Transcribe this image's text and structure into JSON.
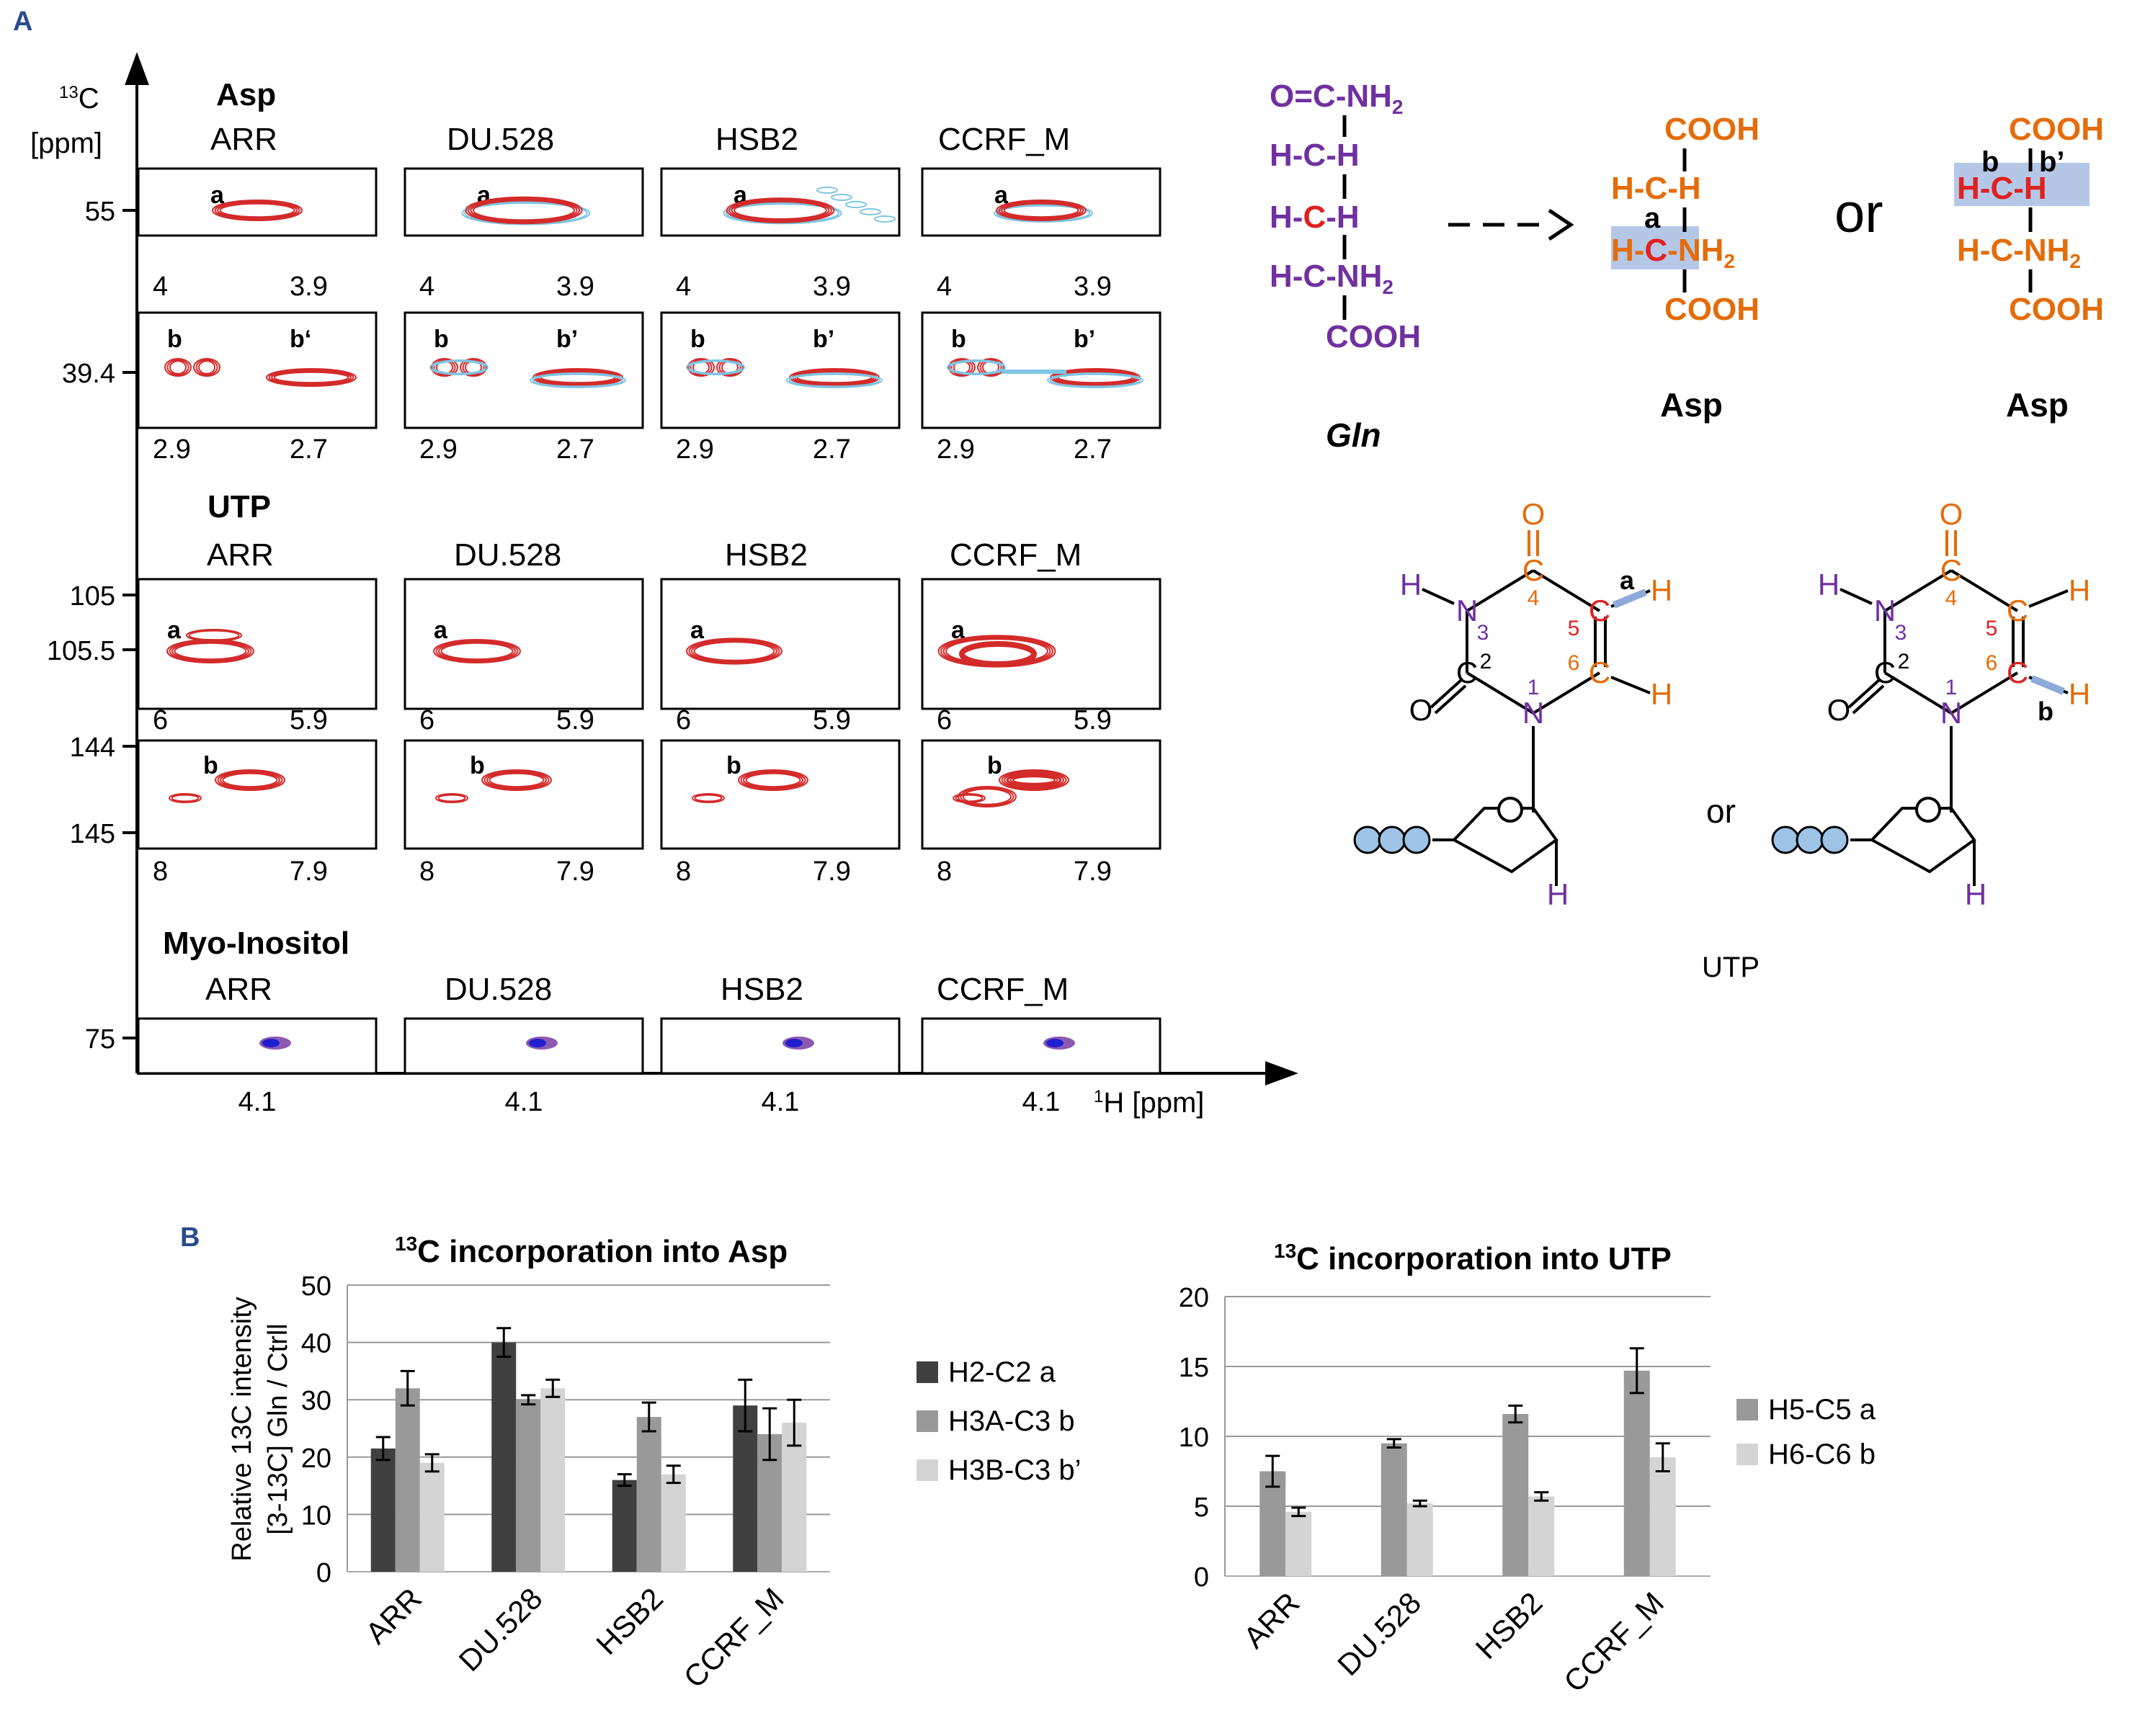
{
  "panel_a": {
    "label": "A",
    "axis": {
      "y_label_sup": "13",
      "y_label_main": "C",
      "y_label_unit": "[ppm]",
      "x_label_sup": "1",
      "x_label_main": "H [ppm]"
    },
    "cells": [
      "ARR",
      "DU.528",
      "HSB2",
      "CCRF_M"
    ],
    "asp": {
      "title": "Asp",
      "row_a": {
        "y_tick": "55",
        "x_ticks": [
          "4",
          "3.9"
        ],
        "peak": "a"
      },
      "row_b": {
        "y_tick": "39.4",
        "x_ticks": [
          "2.9",
          "2.7"
        ],
        "peak_b": "b",
        "peak_b_prime": [
          "b‘",
          "b’",
          "b’",
          "b’"
        ]
      }
    },
    "utp": {
      "title": "UTP",
      "row_a": {
        "y_ticks": [
          "105",
          "105.5"
        ],
        "x_ticks": [
          "6",
          "5.9"
        ],
        "peak": "a"
      },
      "row_b": {
        "y_ticks": [
          "144",
          "145"
        ],
        "x_ticks": [
          "8",
          "7.9"
        ],
        "peak": "b"
      }
    },
    "myo": {
      "title": "Myo-Inositol",
      "y_tick": "75",
      "x_tick": "4.1"
    }
  },
  "scheme": {
    "gln": {
      "label": "Gln",
      "top": [
        "O=C-NH",
        "2"
      ],
      "r2": "H-C-H",
      "r3": "H-C-H",
      "r4": [
        "H-C-NH",
        "2"
      ],
      "bottom": "COOH"
    },
    "asp1": {
      "label": "Asp",
      "top": "COOH",
      "r2": "H-C-H",
      "r3": [
        "H-C-NH",
        "2"
      ],
      "bottom": "COOH",
      "mark": "a"
    },
    "asp2": {
      "label": "Asp",
      "top": "COOH",
      "r2": "H-C-H",
      "r3": [
        "H-C-NH",
        "2"
      ],
      "bottom": "COOH",
      "mark_b": "b",
      "mark_b_prime": "b’"
    },
    "or_1": "or",
    "utp_or": "or",
    "utp_label": "UTP",
    "ring": {
      "h": "H",
      "n": "N",
      "c": "C",
      "o": "O",
      "n1": "1",
      "c2": "2",
      "n3": "3",
      "c4": "4",
      "c5": "5",
      "c6": "6",
      "mark_a": "a",
      "mark_b": "b"
    }
  },
  "panel_b": {
    "label": "B",
    "colors": {
      "a": "#404040",
      "b": "#999999",
      "c": "#d4d4d4"
    }
  },
  "chart_data": [
    {
      "type": "bar",
      "title": "13C incorporation into Asp",
      "title_sup": "13",
      "title_rest": "C incorporation into Asp",
      "ylabel_line1": "Relative 13C intensity",
      "ylabel_line2": "[3-13C] Gln / Ctrll",
      "categories": [
        "ARR",
        "DU.528",
        "HSB2",
        "CCRF_M"
      ],
      "ylim": [
        0,
        50
      ],
      "yticks": [
        0,
        10,
        20,
        30,
        40,
        50
      ],
      "grid": true,
      "legend_position": "right",
      "series": [
        {
          "name": "H2-C2 a",
          "values": [
            21.5,
            40,
            16,
            29
          ],
          "errors": [
            2,
            2.5,
            1,
            4.5
          ]
        },
        {
          "name": "H3A-C3 b",
          "values": [
            32,
            30,
            27,
            24
          ],
          "errors": [
            3,
            0.8,
            2.5,
            4.5
          ]
        },
        {
          "name": "H3B-C3 b’",
          "values": [
            19,
            32,
            17,
            26
          ],
          "errors": [
            1.5,
            1.5,
            1.5,
            4
          ]
        }
      ]
    },
    {
      "type": "bar",
      "title": "13C incorporation into UTP",
      "title_sup": "13",
      "title_rest": "C incorporation into UTP",
      "ylabel": "",
      "categories": [
        "ARR",
        "DU.528",
        "HSB2",
        "CCRF_M"
      ],
      "ylim": [
        0,
        20
      ],
      "yticks": [
        0,
        5,
        10,
        15,
        20
      ],
      "grid": true,
      "legend_position": "right",
      "series": [
        {
          "name": "H5-C5 a",
          "values": [
            7.5,
            9.5,
            11.6,
            14.7
          ],
          "errors": [
            1.1,
            0.3,
            0.6,
            1.6
          ]
        },
        {
          "name": "H6-C6 b",
          "values": [
            4.6,
            5.2,
            5.7,
            8.5
          ],
          "errors": [
            0.3,
            0.2,
            0.3,
            1
          ]
        }
      ]
    }
  ]
}
